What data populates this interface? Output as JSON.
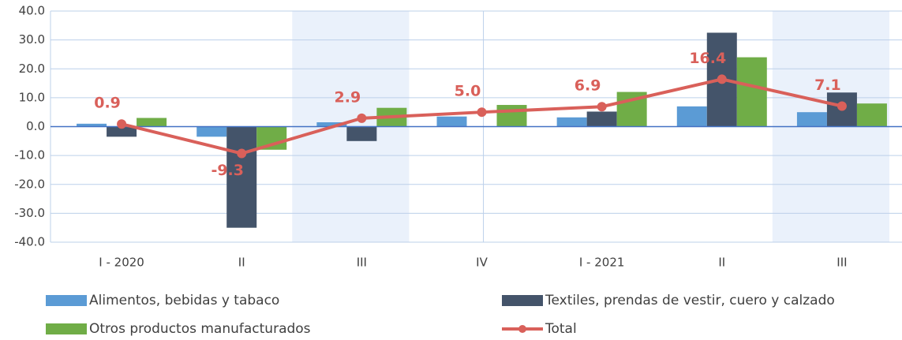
{
  "chart_data": {
    "type": "bar_line",
    "categories": [
      "I - 2020",
      "II",
      "III",
      "IV",
      "I - 2021",
      "II",
      "III"
    ],
    "series": [
      {
        "name": "Alimentos, bebidas y tabaco",
        "color": "#5b9bd5",
        "type": "bar",
        "values": [
          1.0,
          -3.5,
          1.5,
          3.5,
          3.2,
          7.0,
          5.0
        ]
      },
      {
        "name": "Textiles, prendas de vestir, cuero y calzado",
        "color": "#44546a",
        "type": "bar",
        "values": [
          -3.5,
          -35.0,
          -5.0,
          0.0,
          5.2,
          32.5,
          11.8
        ]
      },
      {
        "name": "Otros productos manufacturados",
        "color": "#70ad47",
        "type": "bar",
        "values": [
          3.0,
          -8.0,
          6.5,
          7.5,
          12.0,
          24.0,
          8.0
        ]
      },
      {
        "name": "Total",
        "color": "#d9605a",
        "type": "line",
        "values": [
          0.9,
          -9.3,
          2.9,
          5.0,
          6.9,
          16.4,
          7.1
        ],
        "value_labels": [
          "0.9",
          "-9.3",
          "2.9",
          "5.0",
          "6.9",
          "16.4",
          "7.1"
        ]
      }
    ],
    "ylim": [
      -40,
      40
    ],
    "yticks": [
      {
        "value": -40,
        "label": "-40.0"
      },
      {
        "value": -30,
        "label": "-30.0"
      },
      {
        "value": -20,
        "label": "-20.0"
      },
      {
        "value": -10,
        "label": "-10.0"
      },
      {
        "value": 0,
        "label": "0.0"
      },
      {
        "value": 10,
        "label": "10.0"
      },
      {
        "value": 20,
        "label": "20.0"
      },
      {
        "value": 30,
        "label": "30.0"
      },
      {
        "value": 40,
        "label": "40.0"
      }
    ],
    "grid": true
  }
}
